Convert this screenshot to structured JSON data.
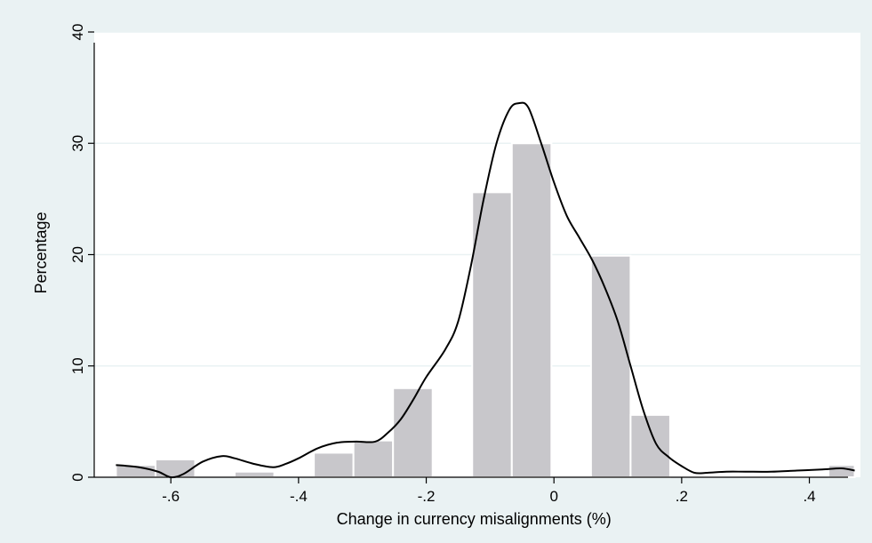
{
  "chart_data": {
    "type": "bar",
    "title": "",
    "xlabel": "Change in currency misalignments (%)",
    "ylabel": "Percentage",
    "xlim": [
      -0.72,
      0.48
    ],
    "ylim": [
      0,
      40
    ],
    "x_ticks": [
      -0.6,
      -0.4,
      -0.2,
      0,
      0.2,
      0.4
    ],
    "x_tick_labels": [
      "-.6",
      "-.4",
      "-.2",
      "0",
      ".2",
      ".4"
    ],
    "y_ticks": [
      0,
      10,
      20,
      30,
      40
    ],
    "y_tick_labels": [
      "0",
      "10",
      "20",
      "30",
      "40"
    ],
    "grid": true,
    "bars": [
      {
        "x0": -0.686,
        "x1": -0.624,
        "value": 1.1
      },
      {
        "x0": -0.624,
        "x1": -0.562,
        "value": 1.6
      },
      {
        "x0": -0.562,
        "x1": -0.5,
        "value": 0.0
      },
      {
        "x0": -0.5,
        "x1": -0.438,
        "value": 0.5
      },
      {
        "x0": -0.438,
        "x1": -0.376,
        "value": 0.0
      },
      {
        "x0": -0.376,
        "x1": -0.314,
        "value": 2.2
      },
      {
        "x0": -0.314,
        "x1": -0.252,
        "value": 3.3
      },
      {
        "x0": -0.252,
        "x1": -0.19,
        "value": 8.0
      },
      {
        "x0": -0.19,
        "x1": -0.128,
        "value": 0.0
      },
      {
        "x0": -0.128,
        "x1": -0.066,
        "value": 25.6
      },
      {
        "x0": -0.066,
        "x1": -0.004,
        "value": 30.0
      },
      {
        "x0": -0.004,
        "x1": 0.058,
        "value": 0.0
      },
      {
        "x0": 0.058,
        "x1": 0.12,
        "value": 19.9
      },
      {
        "x0": 0.12,
        "x1": 0.182,
        "value": 5.6
      },
      {
        "x0": 0.182,
        "x1": 0.244,
        "value": 0.0
      },
      {
        "x0": 0.244,
        "x1": 0.306,
        "value": 0.0
      },
      {
        "x0": 0.306,
        "x1": 0.368,
        "value": 0.0
      },
      {
        "x0": 0.368,
        "x1": 0.43,
        "value": 0.0
      },
      {
        "x0": 0.43,
        "x1": 0.471,
        "value": 1.1
      }
    ],
    "density_curve": {
      "x": [
        -0.686,
        -0.65,
        -0.62,
        -0.6,
        -0.58,
        -0.55,
        -0.52,
        -0.5,
        -0.47,
        -0.44,
        -0.42,
        -0.4,
        -0.37,
        -0.34,
        -0.31,
        -0.28,
        -0.26,
        -0.24,
        -0.22,
        -0.2,
        -0.17,
        -0.15,
        -0.13,
        -0.11,
        -0.09,
        -0.07,
        -0.055,
        -0.04,
        -0.02,
        0.0,
        0.02,
        0.04,
        0.06,
        0.08,
        0.1,
        0.12,
        0.14,
        0.16,
        0.18,
        0.2,
        0.22,
        0.24,
        0.27,
        0.3,
        0.34,
        0.38,
        0.42,
        0.45,
        0.471
      ],
      "y": [
        1.1,
        0.9,
        0.5,
        0.0,
        0.3,
        1.4,
        1.9,
        1.7,
        1.2,
        0.9,
        1.2,
        1.7,
        2.6,
        3.1,
        3.2,
        3.2,
        4.0,
        5.2,
        7.0,
        9.0,
        11.5,
        14.0,
        19.0,
        25.0,
        30.0,
        33.0,
        33.6,
        33.2,
        30.0,
        26.5,
        23.5,
        21.5,
        19.5,
        17.0,
        14.0,
        10.0,
        6.0,
        3.0,
        1.8,
        1.0,
        0.4,
        0.4,
        0.5,
        0.5,
        0.5,
        0.6,
        0.7,
        0.8,
        0.6
      ]
    },
    "colors": {
      "bar_fill": "#c8c7cb",
      "bar_stroke": "#ffffff",
      "curve": "#000000",
      "plot_bg": "#ffffff",
      "outer_bg": "#eaf2f3",
      "grid": "#eaf2f3"
    }
  }
}
